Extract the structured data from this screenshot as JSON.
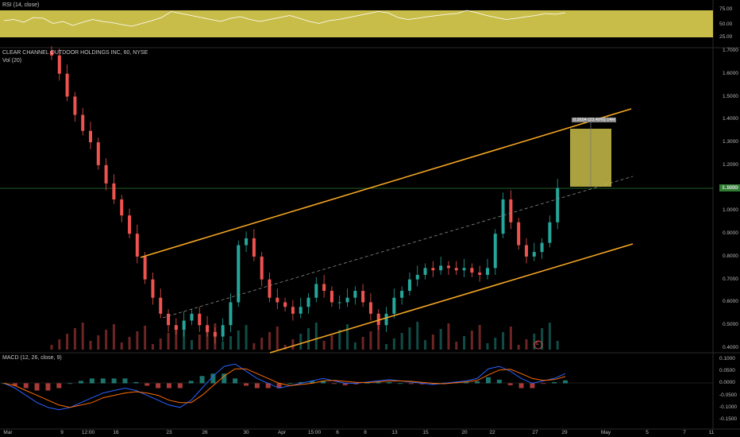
{
  "rsi_panel": {
    "title": "RSI (14, close)",
    "ticks": [
      "75.00",
      "50.00",
      "25.00"
    ]
  },
  "price_panel": {
    "title": "CLEAR CHANNEL OUTDOOR HOLDINGS INC, 60, NYSE",
    "volume_title": "Vol (20)",
    "ticks": [
      "1.7000",
      "1.6000",
      "1.5000",
      "1.4000",
      "1.3000",
      "1.2000",
      "1.1000",
      "1.0000",
      "0.9000",
      "0.8000",
      "0.7000",
      "0.6000",
      "0.5000",
      "0.4000"
    ],
    "last_price_tag": "1.1000",
    "projection_label": "0.2604 (23.49%) 14H",
    "event_marker": "E"
  },
  "macd_panel": {
    "title": "MACD (12, 26, close, 9)",
    "ticks": [
      "0.1000",
      "0.0500",
      "0.0000",
      "-0.0500",
      "-0.1000",
      "-0.1500"
    ]
  },
  "x_axis": {
    "labels": [
      "Mar",
      "9",
      "12:00",
      "16",
      "23",
      "26",
      "30",
      "Apr",
      "15:00",
      "6",
      "8",
      "13",
      "15",
      "20",
      "22",
      "27",
      "29",
      "May",
      "5",
      "7",
      "11"
    ]
  },
  "colors": {
    "up": "#26a69a",
    "down": "#ef5350",
    "channel": "#f5a623",
    "rsi_fill": "#c9bd4a",
    "rsi_line": "#ffffff",
    "macd_line": "#2962ff",
    "signal_line": "#ff6d00",
    "projection": "#c9bd4a"
  },
  "chart_data": [
    {
      "type": "line",
      "title": "RSI (14, close)",
      "ylim": [
        0,
        100
      ],
      "bands": [
        30,
        70
      ],
      "series": [
        {
          "values": [
            52,
            55,
            48,
            60,
            58,
            45,
            50,
            40,
            48,
            55,
            50,
            47,
            42,
            38,
            45,
            52,
            60,
            75,
            70,
            65,
            60,
            55,
            50,
            58,
            62,
            55,
            50,
            55,
            60,
            65,
            58,
            50,
            45,
            52,
            55,
            60,
            65,
            70,
            75,
            72,
            60,
            55,
            58,
            62,
            65,
            68,
            70,
            78,
            72,
            65,
            60,
            55,
            58,
            62,
            65,
            70,
            68,
            72
          ]
        }
      ]
    },
    {
      "type": "candlestick",
      "title": "CLEAR CHANNEL OUTDOOR HOLDINGS INC, 60, NYSE",
      "ylim": [
        0.4,
        1.7
      ],
      "series": [
        {
          "values": [
            1.68,
            1.6,
            1.5,
            1.42,
            1.35,
            1.3,
            1.2,
            1.12,
            1.05,
            0.98,
            0.9,
            0.8,
            0.7,
            0.62,
            0.55,
            0.5,
            0.48,
            0.52,
            0.55,
            0.5,
            0.47,
            0.45,
            0.5,
            0.6,
            0.85,
            0.88,
            0.8,
            0.7,
            0.62,
            0.6,
            0.58,
            0.55,
            0.58,
            0.62,
            0.68,
            0.65,
            0.6,
            0.6,
            0.62,
            0.65,
            0.6,
            0.55,
            0.5,
            0.55,
            0.62,
            0.65,
            0.7,
            0.72,
            0.75,
            0.74,
            0.76,
            0.75,
            0.74,
            0.75,
            0.73,
            0.72,
            0.75,
            0.9,
            1.05,
            0.95,
            0.85,
            0.8,
            0.82,
            0.86,
            0.95,
            1.1
          ]
        }
      ],
      "annotations": {
        "last_price": 1.1,
        "channel": "ascending",
        "projection_top": 1.3604
      }
    },
    {
      "type": "line",
      "title": "MACD (12, 26, close, 9)",
      "ylim": [
        -0.15,
        0.1
      ],
      "series": [
        {
          "values": [
            0,
            -0.02,
            -0.05,
            -0.08,
            -0.1,
            -0.11,
            -0.1,
            -0.08,
            -0.06,
            -0.04,
            -0.03,
            -0.02,
            -0.03,
            -0.05,
            -0.07,
            -0.09,
            -0.1,
            -0.07,
            -0.02,
            0.03,
            0.07,
            0.08,
            0.05,
            0.02,
            0,
            -0.02,
            -0.01,
            0,
            0.01,
            0.02,
            0.01,
            0,
            0,
            0.005,
            0.01,
            0.015,
            0.01,
            0.005,
            0,
            -0.005,
            0,
            0.005,
            0.01,
            0.02,
            0.06,
            0.07,
            0.05,
            0.02,
            0,
            0.01,
            0.02,
            0.04
          ]
        },
        {
          "values": [
            0,
            -0.01,
            -0.03,
            -0.05,
            -0.07,
            -0.09,
            -0.1,
            -0.09,
            -0.08,
            -0.06,
            -0.05,
            -0.04,
            -0.035,
            -0.04,
            -0.05,
            -0.07,
            -0.08,
            -0.08,
            -0.05,
            -0.01,
            0.03,
            0.06,
            0.06,
            0.04,
            0.02,
            0,
            -0.01,
            -0.005,
            0,
            0.01,
            0.012,
            0.008,
            0.004,
            0.003,
            0.006,
            0.01,
            0.01,
            0.008,
            0.004,
            0,
            -0.002,
            0.002,
            0.006,
            0.012,
            0.035,
            0.055,
            0.058,
            0.04,
            0.02,
            0.012,
            0.015,
            0.028
          ]
        }
      ]
    }
  ]
}
